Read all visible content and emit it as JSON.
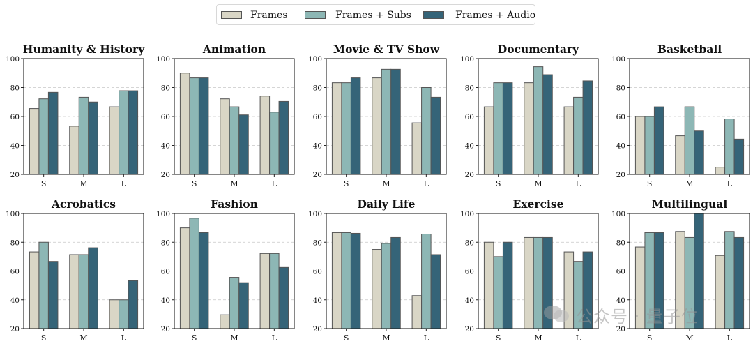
{
  "legend": {
    "items": [
      {
        "label": "Frames",
        "color": "#d9d6c6"
      },
      {
        "label": "Frames + Subs",
        "color": "#8db7b5"
      },
      {
        "label": "Frames + Audio",
        "color": "#356478"
      }
    ]
  },
  "watermark": {
    "text": "公众号 · 量子位"
  },
  "chart_data": [
    {
      "type": "bar",
      "title": "Humanity & History",
      "categories": [
        "S",
        "M",
        "L"
      ],
      "ylim": [
        20,
        100
      ],
      "yticks": [
        20,
        40,
        60,
        80,
        100
      ],
      "grid": true,
      "series": [
        {
          "name": "Frames",
          "values": [
            65.5,
            53.3,
            66.7
          ]
        },
        {
          "name": "Frames + Subs",
          "values": [
            72.2,
            73.3,
            77.8
          ]
        },
        {
          "name": "Frames + Audio",
          "values": [
            76.7,
            70.0,
            77.8
          ]
        }
      ]
    },
    {
      "type": "bar",
      "title": "Animation",
      "categories": [
        "S",
        "M",
        "L"
      ],
      "ylim": [
        20,
        100
      ],
      "yticks": [
        20,
        40,
        60,
        80,
        100
      ],
      "grid": true,
      "series": [
        {
          "name": "Frames",
          "values": [
            90.0,
            72.2,
            74.1
          ]
        },
        {
          "name": "Frames + Subs",
          "values": [
            86.7,
            66.7,
            63.0
          ]
        },
        {
          "name": "Frames + Audio",
          "values": [
            86.7,
            61.1,
            70.4
          ]
        }
      ]
    },
    {
      "type": "bar",
      "title": "Movie & TV Show",
      "categories": [
        "S",
        "M",
        "L"
      ],
      "ylim": [
        20,
        100
      ],
      "yticks": [
        20,
        40,
        60,
        80,
        100
      ],
      "grid": true,
      "series": [
        {
          "name": "Frames",
          "values": [
            83.3,
            86.7,
            55.6
          ]
        },
        {
          "name": "Frames + Subs",
          "values": [
            83.3,
            92.6,
            80.0
          ]
        },
        {
          "name": "Frames + Audio",
          "values": [
            86.7,
            92.6,
            73.3
          ]
        }
      ]
    },
    {
      "type": "bar",
      "title": "Documentary",
      "categories": [
        "S",
        "M",
        "L"
      ],
      "ylim": [
        20,
        100
      ],
      "yticks": [
        20,
        40,
        60,
        80,
        100
      ],
      "grid": true,
      "series": [
        {
          "name": "Frames",
          "values": [
            66.7,
            83.3,
            66.7
          ]
        },
        {
          "name": "Frames + Subs",
          "values": [
            83.3,
            94.4,
            73.3
          ]
        },
        {
          "name": "Frames + Audio",
          "values": [
            83.3,
            88.9,
            84.6
          ]
        }
      ]
    },
    {
      "type": "bar",
      "title": "Basketball",
      "categories": [
        "S",
        "M",
        "L"
      ],
      "ylim": [
        20,
        100
      ],
      "yticks": [
        20,
        40,
        60,
        80,
        100
      ],
      "grid": true,
      "series": [
        {
          "name": "Frames",
          "values": [
            60.0,
            46.7,
            25.0
          ]
        },
        {
          "name": "Frames + Subs",
          "values": [
            60.0,
            66.7,
            58.3
          ]
        },
        {
          "name": "Frames + Audio",
          "values": [
            66.7,
            50.0,
            44.4
          ]
        }
      ]
    },
    {
      "type": "bar",
      "title": "Acrobatics",
      "categories": [
        "S",
        "M",
        "L"
      ],
      "ylim": [
        20,
        100
      ],
      "yticks": [
        20,
        40,
        60,
        80,
        100
      ],
      "grid": true,
      "series": [
        {
          "name": "Frames",
          "values": [
            73.3,
            71.4,
            40.0
          ]
        },
        {
          "name": "Frames + Subs",
          "values": [
            80.0,
            71.4,
            40.0
          ]
        },
        {
          "name": "Frames + Audio",
          "values": [
            66.7,
            76.2,
            53.3
          ]
        }
      ]
    },
    {
      "type": "bar",
      "title": "Fashion",
      "categories": [
        "S",
        "M",
        "L"
      ],
      "ylim": [
        20,
        100
      ],
      "yticks": [
        20,
        40,
        60,
        80,
        100
      ],
      "grid": true,
      "series": [
        {
          "name": "Frames",
          "values": [
            90.0,
            29.6,
            72.2
          ]
        },
        {
          "name": "Frames + Subs",
          "values": [
            96.7,
            55.6,
            72.2
          ]
        },
        {
          "name": "Frames + Audio",
          "values": [
            86.7,
            51.9,
            62.5
          ]
        }
      ]
    },
    {
      "type": "bar",
      "title": "Daily Life",
      "categories": [
        "S",
        "M",
        "L"
      ],
      "ylim": [
        20,
        100
      ],
      "yticks": [
        20,
        40,
        60,
        80,
        100
      ],
      "grid": true,
      "series": [
        {
          "name": "Frames",
          "values": [
            86.7,
            75.0,
            42.9
          ]
        },
        {
          "name": "Frames + Subs",
          "values": [
            86.7,
            79.2,
            85.7
          ]
        },
        {
          "name": "Frames + Audio",
          "values": [
            86.2,
            83.3,
            71.4
          ]
        }
      ]
    },
    {
      "type": "bar",
      "title": "Exercise",
      "categories": [
        "S",
        "M",
        "L"
      ],
      "ylim": [
        20,
        100
      ],
      "yticks": [
        20,
        40,
        60,
        80,
        100
      ],
      "grid": true,
      "series": [
        {
          "name": "Frames",
          "values": [
            80.0,
            83.3,
            73.3
          ]
        },
        {
          "name": "Frames + Subs",
          "values": [
            70.0,
            83.3,
            66.7
          ]
        },
        {
          "name": "Frames + Audio",
          "values": [
            80.0,
            83.3,
            73.3
          ]
        }
      ]
    },
    {
      "type": "bar",
      "title": "Multilingual",
      "categories": [
        "S",
        "M",
        "L"
      ],
      "ylim": [
        20,
        100
      ],
      "yticks": [
        20,
        40,
        60,
        80,
        100
      ],
      "grid": true,
      "series": [
        {
          "name": "Frames",
          "values": [
            76.7,
            87.5,
            70.8
          ]
        },
        {
          "name": "Frames + Subs",
          "values": [
            86.7,
            83.3,
            87.5
          ]
        },
        {
          "name": "Frames + Audio",
          "values": [
            86.7,
            100.0,
            83.3
          ]
        }
      ]
    }
  ]
}
